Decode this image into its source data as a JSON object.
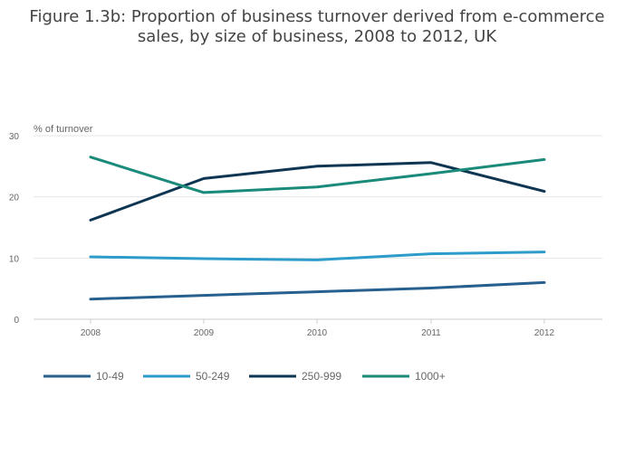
{
  "chart_data": {
    "type": "line",
    "title": "Figure 1.3b: Proportion of business turnover derived from e-commerce sales, by size of business, 2008 to 2012, UK",
    "ylabel": "% of turnover",
    "xlabel": "",
    "x": [
      "2008",
      "2009",
      "2010",
      "2011",
      "2012"
    ],
    "yticks": [
      0,
      10,
      20,
      30
    ],
    "ylim": [
      0,
      30
    ],
    "grid": true,
    "legend_position": "bottom",
    "series": [
      {
        "name": "10-49",
        "color": "#27608e",
        "values": [
          3.3,
          3.9,
          4.5,
          5.1,
          6.0
        ]
      },
      {
        "name": "50-249",
        "color": "#2e9ccb",
        "values": [
          10.2,
          9.9,
          9.7,
          10.7,
          11.0
        ]
      },
      {
        "name": "250-999",
        "color": "#0e3552",
        "values": [
          16.2,
          23.0,
          25.0,
          25.6,
          20.9
        ]
      },
      {
        "name": "1000+",
        "color": "#1a8a7a",
        "values": [
          26.5,
          20.7,
          21.6,
          23.8,
          26.1
        ]
      }
    ]
  }
}
